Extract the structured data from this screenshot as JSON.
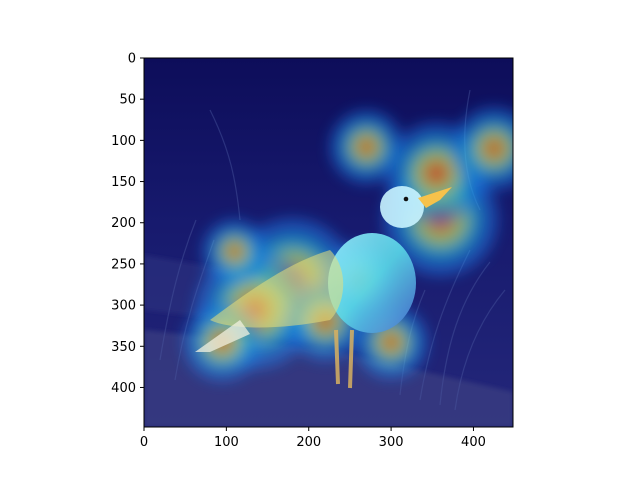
{
  "chart_data": {
    "type": "heatmap",
    "title": "",
    "xlabel": "",
    "ylabel": "",
    "xlim": [
      0,
      448
    ],
    "ylim": [
      448,
      0
    ],
    "x_ticks": [
      0,
      100,
      200,
      300,
      400
    ],
    "y_ticks": [
      0,
      50,
      100,
      150,
      200,
      250,
      300,
      350,
      400
    ],
    "colormap": "jet",
    "grid": false,
    "legend": "none",
    "image_content": "seagull standing on weathered wood overlaid with attention heatmap",
    "hotspots": [
      {
        "x": 180,
        "y": 270,
        "intensity": 1.0
      },
      {
        "x": 135,
        "y": 305,
        "intensity": 0.95
      },
      {
        "x": 360,
        "y": 195,
        "intensity": 0.9
      },
      {
        "x": 355,
        "y": 140,
        "intensity": 0.75
      },
      {
        "x": 425,
        "y": 110,
        "intensity": 0.55
      },
      {
        "x": 270,
        "y": 108,
        "intensity": 0.45
      },
      {
        "x": 260,
        "y": 270,
        "intensity": 0.45
      },
      {
        "x": 95,
        "y": 345,
        "intensity": 0.5
      },
      {
        "x": 300,
        "y": 345,
        "intensity": 0.45
      },
      {
        "x": 220,
        "y": 320,
        "intensity": 0.5
      },
      {
        "x": 110,
        "y": 235,
        "intensity": 0.35
      }
    ]
  }
}
